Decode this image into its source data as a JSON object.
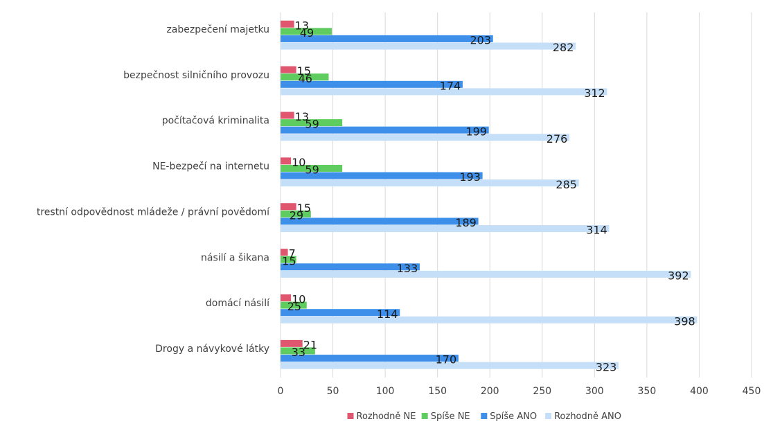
{
  "chart_data": {
    "type": "bar",
    "orientation": "horizontal",
    "categories": [
      "zabezpečení majetku",
      "bezpečnost silničního provozu",
      "počítačová kriminalita",
      "NE-bezpečí na internetu",
      "trestní odpovědnost mládeže / právní povědomí",
      "násilí a šikana",
      "domácí násilí",
      "Drogy a návykové látky"
    ],
    "series": [
      {
        "name": "Rozhodně NE",
        "color": "#e0566f",
        "values": [
          13,
          15,
          13,
          10,
          15,
          7,
          10,
          21
        ]
      },
      {
        "name": "Spíše NE",
        "color": "#5fcc5f",
        "values": [
          49,
          46,
          59,
          59,
          29,
          15,
          25,
          33
        ]
      },
      {
        "name": "Spíše ANO",
        "color": "#3d8fea",
        "values": [
          203,
          174,
          199,
          193,
          189,
          133,
          114,
          170
        ]
      },
      {
        "name": "Rozhodně ANO",
        "color": "#c5dff8",
        "values": [
          282,
          312,
          276,
          285,
          314,
          392,
          398,
          323
        ]
      }
    ],
    "xlim": [
      0,
      450
    ],
    "ticks": [
      0,
      50,
      100,
      150,
      200,
      250,
      300,
      350,
      400,
      450
    ],
    "grid": true,
    "legend_position": "bottom",
    "data_labels": true
  }
}
